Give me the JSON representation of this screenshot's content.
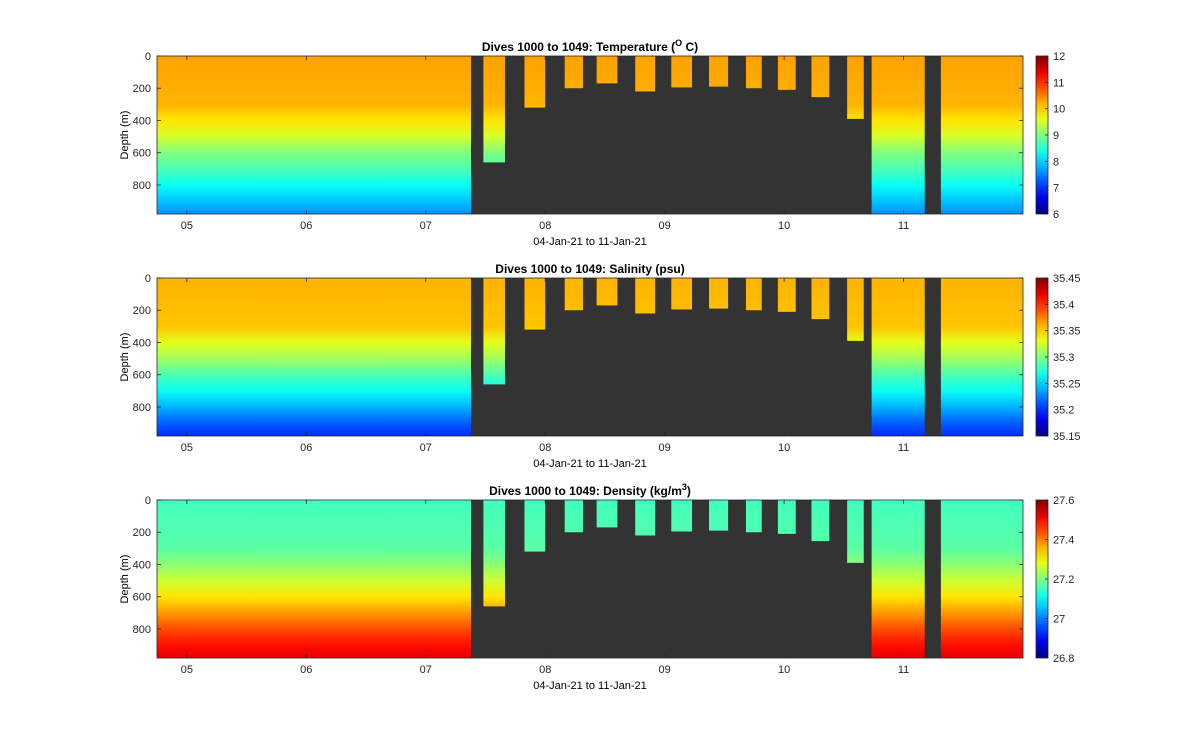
{
  "chart_data": [
    {
      "type": "heatmap",
      "title_main": "Dives 1000 to 1049: Temperature (",
      "title_sup": "O",
      "title_tail": " C)",
      "xlabel": "04-Jan-21 to 11-Jan-21",
      "ylabel": "Depth (m)",
      "x_ticks": [
        "05",
        "06",
        "07",
        "08",
        "09",
        "10",
        "11"
      ],
      "y_ticks": [
        "0",
        "200",
        "400",
        "600",
        "800"
      ],
      "colorbar_ticks": [
        "12",
        "11",
        "10",
        "9",
        "8",
        "7",
        "6"
      ],
      "clim": [
        6,
        12
      ],
      "profile": [
        {
          "depth": 0,
          "value": 10.3
        },
        {
          "depth": 300,
          "value": 10.2
        },
        {
          "depth": 400,
          "value": 9.9
        },
        {
          "depth": 500,
          "value": 9.5
        },
        {
          "depth": 600,
          "value": 9.0
        },
        {
          "depth": 700,
          "value": 8.7
        },
        {
          "depth": 800,
          "value": 8.3
        },
        {
          "depth": 900,
          "value": 7.9
        },
        {
          "depth": 980,
          "value": 7.6
        }
      ]
    },
    {
      "type": "heatmap",
      "title_main": "Dives 1000 to 1049: Salinity (psu)",
      "title_sup": "",
      "title_tail": "",
      "xlabel": "04-Jan-21 to 11-Jan-21",
      "ylabel": "Depth (m)",
      "x_ticks": [
        "05",
        "06",
        "07",
        "08",
        "09",
        "10",
        "11"
      ],
      "y_ticks": [
        "0",
        "200",
        "400",
        "600",
        "800"
      ],
      "colorbar_ticks": [
        "35.45",
        "35.4",
        "35.35",
        "35.3",
        "35.25",
        "35.2",
        "35.15"
      ],
      "clim": [
        35.15,
        35.45
      ],
      "profile": [
        {
          "depth": 0,
          "value": 35.36
        },
        {
          "depth": 300,
          "value": 35.355
        },
        {
          "depth": 400,
          "value": 35.33
        },
        {
          "depth": 500,
          "value": 35.31
        },
        {
          "depth": 600,
          "value": 35.285
        },
        {
          "depth": 700,
          "value": 35.265
        },
        {
          "depth": 800,
          "value": 35.24
        },
        {
          "depth": 900,
          "value": 35.215
        },
        {
          "depth": 980,
          "value": 35.2
        }
      ]
    },
    {
      "type": "heatmap",
      "title_main": "Dives 1000 to 1049: Density (kg/m",
      "title_sup": "3",
      "title_tail": ")",
      "xlabel": "04-Jan-21 to 11-Jan-21",
      "ylabel": "Depth (m)",
      "x_ticks": [
        "05",
        "06",
        "07",
        "08",
        "09",
        "10",
        "11"
      ],
      "y_ticks": [
        "0",
        "200",
        "400",
        "600",
        "800"
      ],
      "colorbar_ticks": [
        "27.6",
        "27.4",
        "27.2",
        "27",
        "26.8"
      ],
      "clim": [
        26.8,
        27.6
      ],
      "profile": [
        {
          "depth": 0,
          "value": 27.15
        },
        {
          "depth": 300,
          "value": 27.17
        },
        {
          "depth": 400,
          "value": 27.21
        },
        {
          "depth": 500,
          "value": 27.26
        },
        {
          "depth": 600,
          "value": 27.32
        },
        {
          "depth": 700,
          "value": 27.38
        },
        {
          "depth": 800,
          "value": 27.44
        },
        {
          "depth": 900,
          "value": 27.49
        },
        {
          "depth": 980,
          "value": 27.52
        }
      ]
    }
  ],
  "x_range": [
    "2021-01-04T18:00",
    "2021-01-12T00:00"
  ],
  "y_range": [
    0,
    980
  ],
  "x_tick_dates": [
    "2021-01-05",
    "2021-01-06",
    "2021-01-07",
    "2021-01-08",
    "2021-01-09",
    "2021-01-10",
    "2021-01-11"
  ],
  "y_tick_values": [
    0,
    200,
    400,
    600,
    800
  ],
  "colormap": "jet",
  "missing_data_color": "#333333",
  "dives": [
    {
      "start": "2021-01-04T18:00",
      "end": "2021-01-07T09:05",
      "max_depth": 980
    },
    {
      "start": "2021-01-07T09:05",
      "end": "2021-01-07T11:35",
      "max_depth": 0
    },
    {
      "start": "2021-01-07T11:35",
      "end": "2021-01-07T15:55",
      "max_depth": 660
    },
    {
      "start": "2021-01-07T19:50",
      "end": "2021-01-08T00:00",
      "max_depth": 320
    },
    {
      "start": "2021-01-08T03:55",
      "end": "2021-01-08T07:35",
      "max_depth": 200
    },
    {
      "start": "2021-01-08T10:20",
      "end": "2021-01-08T14:30",
      "max_depth": 170
    },
    {
      "start": "2021-01-08T18:05",
      "end": "2021-01-08T22:05",
      "max_depth": 220
    },
    {
      "start": "2021-01-09T01:20",
      "end": "2021-01-09T05:30",
      "max_depth": 195
    },
    {
      "start": "2021-01-09T08:55",
      "end": "2021-01-09T12:45",
      "max_depth": 190
    },
    {
      "start": "2021-01-09T16:20",
      "end": "2021-01-09T19:30",
      "max_depth": 200
    },
    {
      "start": "2021-01-09T22:45",
      "end": "2021-01-10T02:20",
      "max_depth": 210
    },
    {
      "start": "2021-01-10T05:30",
      "end": "2021-01-10T09:05",
      "max_depth": 255
    },
    {
      "start": "2021-01-10T12:40",
      "end": "2021-01-10T16:00",
      "max_depth": 390
    },
    {
      "start": "2021-01-10T17:35",
      "end": "2021-01-11T04:15",
      "max_depth": 980
    },
    {
      "start": "2021-01-11T07:30",
      "end": "2021-01-12T00:00",
      "max_depth": 980
    }
  ]
}
